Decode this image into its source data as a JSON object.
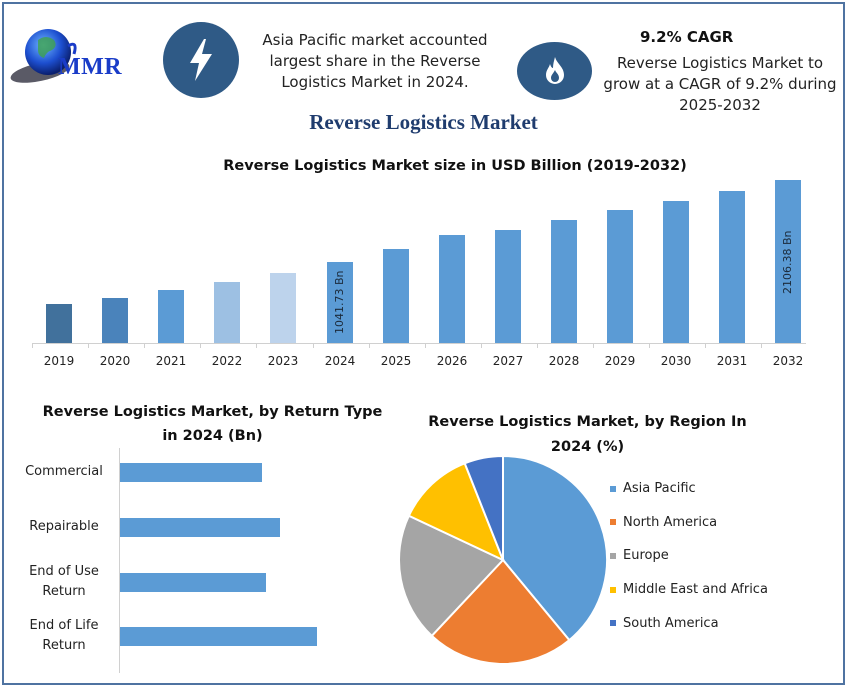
{
  "header": {
    "logo_text": "MMR",
    "info_left": {
      "icon": "lightning-icon",
      "lines": [
        "Asia Pacific market accounted",
        "largest share in the Reverse",
        "Logistics Market in 2024."
      ]
    },
    "info_right": {
      "icon": "flame-icon",
      "title": "9.2% CAGR",
      "lines": [
        "Reverse Logistics Market to",
        "grow at a CAGR of 9.2% during",
        "2025-2032"
      ]
    },
    "main_title": "Reverse Logistics Market"
  },
  "colors": {
    "frame": "#4f73a1",
    "icon_circle": "#2f5a86",
    "title": "#1f3c6e",
    "bar_main": "#5b9bd5"
  },
  "chart_data": [
    {
      "type": "bar",
      "title": "Reverse Logistics Market size in USD Billion (2019-2032)",
      "xlabel": "",
      "ylabel": "",
      "grid": false,
      "categories": [
        "2019",
        "2020",
        "2021",
        "2022",
        "2023",
        "2024",
        "2025",
        "2026",
        "2027",
        "2028",
        "2029",
        "2030",
        "2031",
        "2032"
      ],
      "values": [
        503,
        580,
        683,
        786,
        902,
        1041.73,
        1209,
        1402,
        1466,
        1595,
        1724,
        1840,
        1969,
        2106.38
      ],
      "bar_colors": [
        "#41719c",
        "#4a83bb",
        "#5b9bd5",
        "#9dc0e3",
        "#bdd3ec",
        "#5b9bd5",
        "#5b9bd5",
        "#5b9bd5",
        "#5b9bd5",
        "#5b9bd5",
        "#5b9bd5",
        "#5b9bd5",
        "#5b9bd5",
        "#5b9bd5"
      ],
      "data_labels": {
        "2024": "1041.73 Bn",
        "2032": "2106.38 Bn"
      },
      "ylim": [
        0,
        2200
      ]
    },
    {
      "type": "bar",
      "orientation": "horizontal",
      "title": "Reverse Logistics Market, by Return Type in 2024 (Bn)",
      "categories": [
        "Commercial",
        "Repairable",
        "End of Use Return",
        "End of Life Return"
      ],
      "category_lines": [
        [
          "Commercial"
        ],
        [
          "Repairable"
        ],
        [
          "End of Use",
          "Return"
        ],
        [
          "End of Life",
          "Return"
        ]
      ],
      "values": [
        142,
        160,
        146,
        197
      ],
      "xlabel": "",
      "ylabel": "",
      "grid": false
    },
    {
      "type": "pie",
      "title": "Reverse Logistics Market, by Region In 2024 (%)",
      "title_lines": [
        "Reverse Logistics Market, by Region In",
        "2024 (%)"
      ],
      "labels": [
        "Asia Pacific",
        "North America",
        "Europe",
        "Middle East and Africa",
        "South America"
      ],
      "values": [
        39,
        23,
        20,
        12,
        6
      ],
      "colors": [
        "#5b9bd5",
        "#ed7d31",
        "#a5a5a5",
        "#ffc000",
        "#4472c4"
      ],
      "legend_position": "right"
    }
  ]
}
